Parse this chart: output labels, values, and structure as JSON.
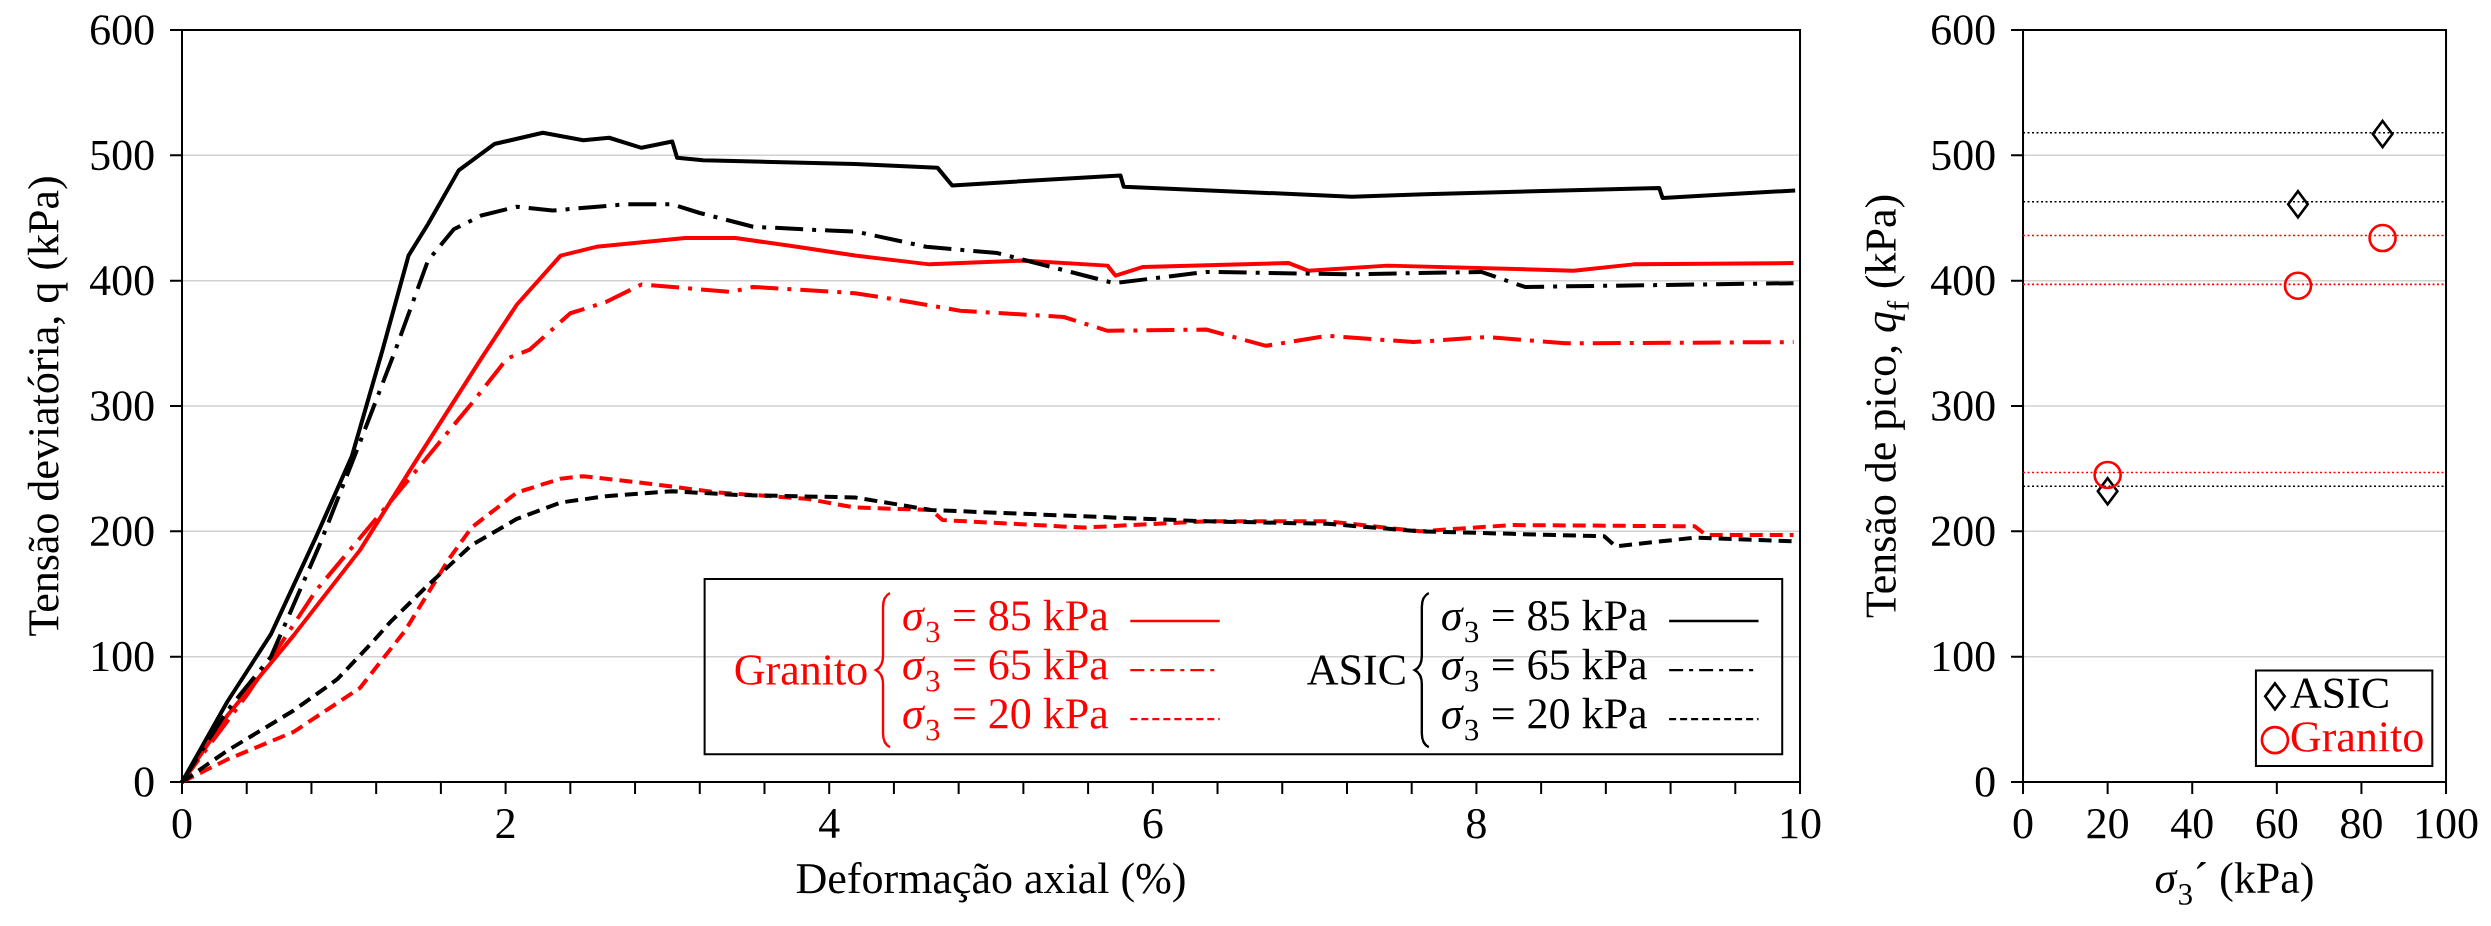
{
  "chart_data": [
    {
      "type": "line",
      "xlabel": "Deformação axial (%)",
      "ylabel": "Tensão deviatória, q (kPa)",
      "xlim": [
        0,
        10
      ],
      "ylim": [
        0,
        600
      ],
      "xticks": [
        0,
        {
          "value": 0.4,
          "label": null
        },
        {
          "value": 0.8,
          "label": null
        },
        {
          "value": 1.2,
          "label": null
        },
        {
          "value": 1.6,
          "label": null
        },
        2,
        {
          "value": 2.4,
          "label": null
        },
        {
          "value": 2.8,
          "label": null
        },
        {
          "value": 3.2,
          "label": null
        },
        {
          "value": 3.6,
          "label": null
        },
        4,
        {
          "value": 4.4,
          "label": null
        },
        {
          "value": 4.8,
          "label": null
        },
        {
          "value": 5.2,
          "label": null
        },
        {
          "value": 5.6,
          "label": null
        },
        6,
        {
          "value": 6.4,
          "label": null
        },
        {
          "value": 6.8,
          "label": null
        },
        {
          "value": 7.2,
          "label": null
        },
        {
          "value": 7.6,
          "label": null
        },
        8,
        {
          "value": 8.4,
          "label": null
        },
        {
          "value": 8.8,
          "label": null
        },
        {
          "value": 9.2,
          "label": null
        },
        {
          "value": 9.6,
          "label": null
        },
        10
      ],
      "yticks": [
        0,
        100,
        200,
        300,
        400,
        500,
        600
      ],
      "grid": "y",
      "legend": "bottom right",
      "annotations": [
        "Granito",
        "ASIC"
      ],
      "series": [
        {
          "name": "*σ*$_{3}$ = 85 kPa",
          "color": "#ff0000",
          "line_style": "solid",
          "x": [
            0,
            0.28,
            0.69,
            1.1,
            1.43,
            1.85,
            2.07,
            2.34,
            2.56,
            3.11,
            3.42,
            3.8,
            4.16,
            4.62,
            5.19,
            5.72,
            5.77,
            5.94,
            6.84,
            6.96,
            7.45,
            8.6,
            8.97,
            9.96
          ],
          "values": [
            0,
            53,
            117,
            185,
            253,
            338,
            381,
            420,
            427,
            434,
            434,
            427,
            420,
            413,
            416,
            412,
            404,
            411,
            414,
            408,
            412,
            408,
            413,
            414
          ]
        },
        {
          "name": "*σ*$_{3}$ = 65 kPa",
          "color": "#ff0000",
          "line_style": "dashdot",
          "x": [
            0,
            0.41,
            0.83,
            1.38,
            1.79,
            2.01,
            2.15,
            2.4,
            2.62,
            2.84,
            3.39,
            3.53,
            4.16,
            4.36,
            4.81,
            5.45,
            5.72,
            6.33,
            6.7,
            7.08,
            7.61,
            8.06,
            8.55,
            9.96
          ],
          "values": [
            0,
            71,
            153,
            238,
            302,
            338,
            345,
            374,
            383,
            397,
            391,
            395,
            390,
            386,
            376,
            371,
            360,
            361,
            348,
            356,
            351,
            355,
            350,
            351
          ]
        },
        {
          "name": "*σ*$_{3}$ = 20 kPa",
          "color": "#ff0000",
          "line_style": "dashed",
          "x": [
            0,
            0.28,
            0.69,
            1.1,
            1.38,
            1.65,
            1.79,
            2.07,
            2.34,
            2.48,
            2.89,
            3.31,
            3.86,
            4.16,
            4.63,
            4.7,
            5.57,
            6.33,
            7.08,
            7.65,
            8.22,
            9.35,
            9.42,
            9.96
          ],
          "values": [
            0,
            18,
            40,
            75,
            121,
            178,
            203,
            231,
            242,
            244,
            238,
            231,
            226,
            219,
            217,
            209,
            203,
            208,
            208,
            200,
            205,
            204,
            197,
            197
          ]
        },
        {
          "name": "*σ*$_{3}$ = 85 kPa",
          "color": "#000000",
          "line_style": "solid",
          "x": [
            0,
            0.28,
            0.55,
            0.83,
            1.05,
            1.24,
            1.4,
            1.52,
            1.71,
            1.93,
            2.23,
            2.48,
            2.64,
            2.84,
            3.03,
            3.06,
            3.22,
            4.16,
            4.67,
            4.76,
            5.8,
            5.82,
            7.23,
            7.68,
            9.13,
            9.15,
            9.97
          ],
          "values": [
            0,
            64,
            118,
            196,
            260,
            345,
            420,
            445,
            488,
            509,
            518,
            512,
            514,
            506,
            511,
            498,
            496,
            493,
            490,
            476,
            484,
            475,
            467,
            469,
            474,
            466,
            472
          ]
        },
        {
          "name": "*σ*$_{3}$ = 65 kPa",
          "color": "#000000",
          "line_style": "dashdot",
          "x": [
            0,
            0.28,
            0.55,
            0.85,
            1.1,
            1.32,
            1.52,
            1.68,
            1.85,
            2.07,
            2.29,
            2.75,
            3.03,
            3.2,
            3.53,
            4.0,
            4.17,
            4.6,
            5.04,
            5.76,
            6.33,
            7.23,
            8.03,
            8.3,
            9.96
          ],
          "values": [
            0,
            57,
            100,
            189,
            271,
            345,
            416,
            441,
            452,
            459,
            456,
            461,
            461,
            454,
            443,
            440,
            439,
            427,
            422,
            398,
            407,
            405,
            407,
            395,
            398
          ]
        },
        {
          "name": "*σ*$_{3}$ = 20 kPa",
          "color": "#000000",
          "line_style": "dashed",
          "x": [
            0,
            0.28,
            0.69,
            0.96,
            1.18,
            1.29,
            1.52,
            1.79,
            2.07,
            2.34,
            2.62,
            3.03,
            3.44,
            4.16,
            4.63,
            5.57,
            6.33,
            7.08,
            7.65,
            8.22,
            8.79,
            8.86,
            9.35,
            9.96
          ],
          "values": [
            0,
            25,
            57,
            82,
            112,
            128,
            157,
            189,
            210,
            223,
            228,
            232,
            229,
            227,
            217,
            212,
            208,
            206,
            200,
            198,
            196,
            188,
            195,
            192
          ]
        }
      ]
    },
    {
      "type": "scatter",
      "xlabel": "*σ*$_{3}$´ (kPa)",
      "ylabel": "Tensão de pico, *q*$_{f}$ (kPa)",
      "xlim": [
        0,
        100
      ],
      "ylim": [
        0,
        600
      ],
      "xticks": [
        0,
        20,
        40,
        60,
        80,
        100
      ],
      "yticks": [
        0,
        100,
        200,
        300,
        400,
        500,
        600
      ],
      "grid": "y",
      "legend": "bottom right",
      "series": [
        {
          "name": "ASIC",
          "color": "#000000",
          "marker": "diamond",
          "x": [
            20,
            65,
            85
          ],
          "values": [
            232,
            461,
            517
          ]
        },
        {
          "name": "Granito",
          "color": "#ff0000",
          "marker": "circle",
          "x": [
            20,
            65,
            85
          ],
          "values": [
            245,
            396,
            434
          ]
        }
      ],
      "ref_lines": [
        {
          "axis": "y",
          "value": 518,
          "color": "#000000",
          "line_style": "dotted"
        },
        {
          "axis": "y",
          "value": 463,
          "color": "#000000",
          "line_style": "dotted"
        },
        {
          "axis": "y",
          "value": 436,
          "color": "#ff0000",
          "line_style": "dotted"
        },
        {
          "axis": "y",
          "value": 397,
          "color": "#ff0000",
          "line_style": "dotted"
        },
        {
          "axis": "y",
          "value": 247,
          "color": "#ff0000",
          "line_style": "dotted"
        },
        {
          "axis": "y",
          "value": 236,
          "color": "#000000",
          "line_style": "dotted"
        }
      ]
    }
  ]
}
